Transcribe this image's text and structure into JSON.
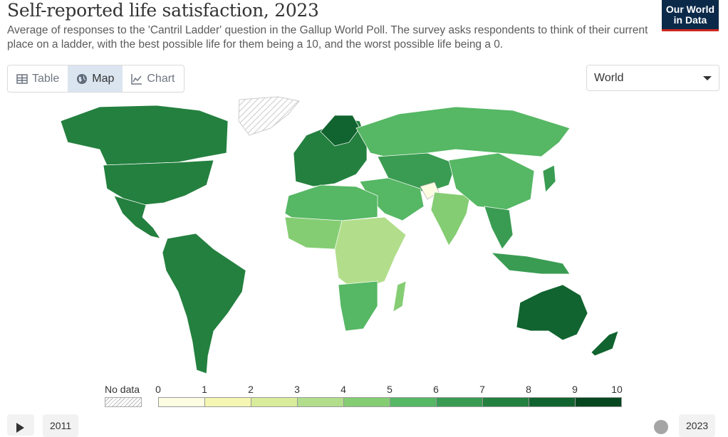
{
  "header": {
    "title": "Self-reported life satisfaction, 2023",
    "subtitle": "Average of responses to the 'Cantril Ladder' question in the Gallup World Poll. The survey asks respondents to think of their current place on a ladder, with the best possible life for them being a 10, and the worst possible life being a 0."
  },
  "logo": {
    "line1": "Our World",
    "line2": "in Data"
  },
  "tabs": [
    {
      "label": "Table",
      "icon": "table-icon"
    },
    {
      "label": "Map",
      "icon": "globe-icon"
    },
    {
      "label": "Chart",
      "icon": "line-chart-icon"
    }
  ],
  "region_select": {
    "value": "World"
  },
  "legend": {
    "no_data_label": "No data",
    "ticks": [
      "0",
      "1",
      "2",
      "3",
      "4",
      "5",
      "6",
      "7",
      "8",
      "9",
      "10"
    ],
    "colors": [
      "#fdfde3",
      "#f4f6b2",
      "#d9ec9c",
      "#b2de8b",
      "#85cd73",
      "#56b764",
      "#3a9c52",
      "#24803f",
      "#11642f",
      "#06471f"
    ]
  },
  "timeline": {
    "start_year": "2011",
    "end_year": "2023"
  },
  "colors": {
    "no_data": "#dddddd",
    "logo_bg": "#0b2a4a",
    "logo_accent": "#ce261e"
  }
}
